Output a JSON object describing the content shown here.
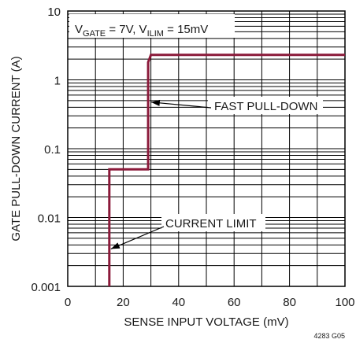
{
  "chart_data": {
    "type": "line",
    "title": "",
    "xlabel": "SENSE INPUT VOLTAGE (mV)",
    "ylabel": "GATE PULL-DOWN CURRENT (A)",
    "x_scale": "linear",
    "y_scale": "log",
    "xlim": [
      0,
      100
    ],
    "ylim": [
      0.001,
      10
    ],
    "grid": true,
    "x_ticks": [
      0,
      20,
      40,
      60,
      80,
      100
    ],
    "x_tick_labels": [
      "0",
      "20",
      "40",
      "60",
      "80",
      "100"
    ],
    "y_ticks": [
      0.001,
      0.01,
      0.1,
      1,
      10
    ],
    "y_tick_labels": [
      "0.001",
      "0.01",
      "0.1",
      "1",
      "10"
    ],
    "series": [
      {
        "color": "#8b1a3a",
        "x": [
          15,
          15,
          29,
          29,
          30,
          100
        ],
        "y": [
          0.001,
          0.05,
          0.05,
          1.8,
          2.3,
          2.3
        ]
      }
    ],
    "conditions": {
      "v": "V",
      "gate_sub": "GATE",
      "gate_val": " = 7V, V",
      "ilim_sub": "ILIM",
      "ilim_val": " = 15mV"
    },
    "annotations": [
      {
        "text": "FAST PULL-DOWN",
        "point": [
          29.5,
          0.5
        ]
      },
      {
        "text": "CURRENT LIMIT",
        "point": [
          15,
          0.0035
        ]
      }
    ],
    "figure_id": "4283 G05"
  }
}
